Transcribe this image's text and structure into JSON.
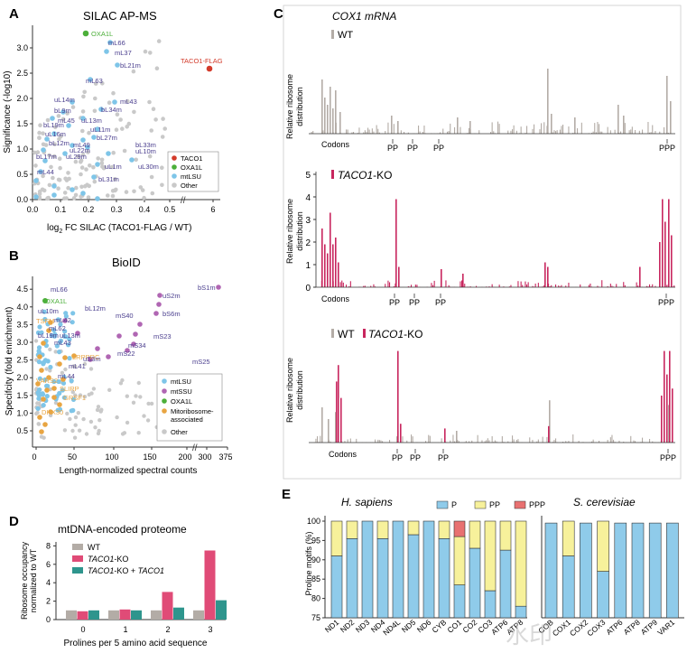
{
  "colors": {
    "mtlsu": "#7ec5e8",
    "other": "#c9c9c9",
    "taco1": "#d33a2a",
    "oxa1l": "#4caf3a",
    "mtssu": "#b066b3",
    "assoc": "#e8a542",
    "wt_bar": "#b3aca6",
    "ko_bar": "#c8265e",
    "teal": "#2e958d",
    "p_blue": "#8fcbea",
    "pp_yellow": "#f7f19b",
    "ppp_red": "#e87171",
    "label_purple": "#4a3e8e"
  },
  "panels": {
    "a": "A",
    "b": "B",
    "c": "C",
    "d": "D",
    "e": "E"
  },
  "panel_a": {
    "title": "SILAC AP-MS",
    "ylabel": "Significance (-log10)",
    "xlabel_pre": "log",
    "xlabel_sub": "2",
    "xlabel_post": " FC SILAC (TACO1-FLAG / WT)",
    "xticks": [
      "0.0",
      "0.1",
      "0.2",
      "0.3",
      "0.4",
      "0.5",
      "6"
    ],
    "yticks": [
      "0.0",
      "0.5",
      "1.0",
      "1.5",
      "2.0",
      "2.5",
      "3.0"
    ],
    "labels": {
      "oxa1l": "OXA1L",
      "taco1": "TACO1-FLAG",
      "l1": "mL66",
      "l2": "mL37",
      "l3": "bL21m",
      "l4": "mL63",
      "l5": "uL14m",
      "l6": "mL43",
      "l7": "bL9m",
      "l8": "bL34m",
      "l9": "mL45",
      "l10": "uL13m",
      "l11": "bL19m",
      "l12": "uL11m",
      "l13": "uL16m",
      "l14": "bL27m",
      "l15": "bL12m",
      "l16": "mL49",
      "l17": "uL22m",
      "l18": "bL33m",
      "l19": "uL29m",
      "l20": "uL10m",
      "l21": "bL17m",
      "l22": "uL1m",
      "l23": "uL30m",
      "l24": "mL44",
      "l25": "bL31m"
    },
    "legend": [
      "TACO1",
      "OXA1L",
      "mtLSU",
      "Other"
    ]
  },
  "panel_b": {
    "title": "BioID",
    "ylabel": "Specifcity (fold enrichment)",
    "xlabel": "Length-normalized spectral counts",
    "xticks": [
      "0",
      "50",
      "100",
      "150",
      "200",
      "300",
      "375"
    ],
    "yticks": [
      "0.5",
      "1.0",
      "1.5",
      "2.0",
      "2.5",
      "3.0",
      "3.5",
      "4.0",
      "4.5"
    ],
    "labels": {
      "bs1m": "bS1m",
      "us2m": "uS2m",
      "mL66": "mL66",
      "oxa1l": "OXA1L",
      "bs6m": "bS6m",
      "uL10m": "uL10m",
      "bL12m": "bL12m",
      "tsfm": "TSFM",
      "mL42": "mL42",
      "mS40": "mS40",
      "mL62": "mL62",
      "mS23": "mS23",
      "bL19m": "bL19m",
      "uL13m": "uL13m",
      "mL43": "mL43",
      "mS34": "mS34",
      "mS22": "mS22",
      "lrpprc": "LRPPRC",
      "uS3m": "uS3m",
      "mL41": "mL41",
      "mS25": "mS25",
      "vars2": "VARS2",
      "mL44": "mL44",
      "slirp": "SLIRP",
      "grsf1": "GRSF1",
      "dhx30": "DHX30"
    },
    "legend": [
      "mtLSU",
      "mtSSU",
      "OXA1L",
      "Mitoribosome-",
      "associated",
      "Other"
    ]
  },
  "panel_c": {
    "title": "COX1 mRNA",
    "wt": "WT",
    "ko_italic": "TACO1",
    "ko_rest": "-KO",
    "ylabel1": "Relative ribosome",
    "ylabel2": "distribution",
    "codons": "Codons",
    "pp": "PP",
    "ppp": "PPP",
    "yticks_ko": [
      "0",
      "1",
      "2",
      "3",
      "4",
      "5"
    ]
  },
  "panel_d": {
    "title": "mtDNA-encoded proteome",
    "ylabel1": "Ribosome occupancy",
    "ylabel2": "normalized to WT",
    "xlabel": "Prolines per 5 amino acid sequence",
    "legend_wt": "WT",
    "legend_ko_i": "TACO1",
    "legend_ko_r": "-KO",
    "legend_res_i": "TACO1",
    "legend_res_mid": "-KO + ",
    "legend_res_i2": "TACO1",
    "yticks": [
      "0",
      "2",
      "4",
      "6",
      "8"
    ]
  },
  "chart_data": [
    {
      "type": "bar",
      "title": "mtDNA-encoded proteome",
      "xlabel": "Prolines per 5 amino acid sequence",
      "ylabel": "Ribosome occupancy normalized to WT",
      "categories": [
        "0",
        "1",
        "2",
        "3"
      ],
      "ylim": [
        0,
        8
      ],
      "series": [
        {
          "name": "WT",
          "values": [
            1.0,
            1.0,
            1.0,
            1.0
          ]
        },
        {
          "name": "TACO1-KO",
          "values": [
            0.9,
            1.1,
            3.0,
            7.5
          ]
        },
        {
          "name": "TACO1-KO + TACO1",
          "values": [
            1.0,
            1.0,
            1.3,
            2.1
          ]
        }
      ]
    },
    {
      "type": "bar",
      "title": "H. sapiens",
      "ylabel": "Proline motifs (%)",
      "ylim": [
        75,
        100
      ],
      "categories": [
        "ND1",
        "ND2",
        "ND3",
        "ND4",
        "ND4L",
        "ND5",
        "ND6",
        "CYB",
        "CO1",
        "CO2",
        "CO3",
        "ATP6",
        "ATP8"
      ],
      "series": [
        {
          "name": "P",
          "values": [
            91,
            95.5,
            100,
            95.5,
            100,
            96.5,
            100,
            95.5,
            83.5,
            93,
            82,
            92.5,
            78
          ]
        },
        {
          "name": "PP",
          "values": [
            9,
            4.5,
            0,
            4.5,
            0,
            3.5,
            0,
            4.5,
            12.5,
            7,
            18,
            7.5,
            22
          ]
        },
        {
          "name": "PPP",
          "values": [
            0,
            0,
            0,
            0,
            0,
            0,
            0,
            0,
            4,
            0,
            0,
            0,
            0
          ]
        }
      ]
    },
    {
      "type": "bar",
      "title": "S. cerevisiae",
      "ylabel": "Proline motifs (%)",
      "ylim": [
        75,
        100
      ],
      "categories": [
        "COB",
        "COX1",
        "COX2",
        "COX3",
        "ATP6",
        "ATP8",
        "ATP9",
        "VAR1"
      ],
      "series": [
        {
          "name": "P",
          "values": [
            99.5,
            91,
            99.5,
            87,
            99.5,
            99.5,
            99.5,
            99.5
          ]
        },
        {
          "name": "PP",
          "values": [
            0,
            9,
            0,
            13,
            0,
            0,
            0,
            0
          ]
        },
        {
          "name": "PPP",
          "values": [
            0,
            0,
            0,
            0,
            0,
            0,
            0,
            0
          ]
        }
      ]
    }
  ],
  "panel_e": {
    "hs": "H. sapiens",
    "sc": "S. cerevisiae",
    "ylabel": "Proline motifs (%)",
    "legend": [
      "P",
      "PP",
      "PPP"
    ],
    "yticks": [
      "75",
      "80",
      "85",
      "90",
      "95",
      "100"
    ]
  },
  "watermark": "水印"
}
